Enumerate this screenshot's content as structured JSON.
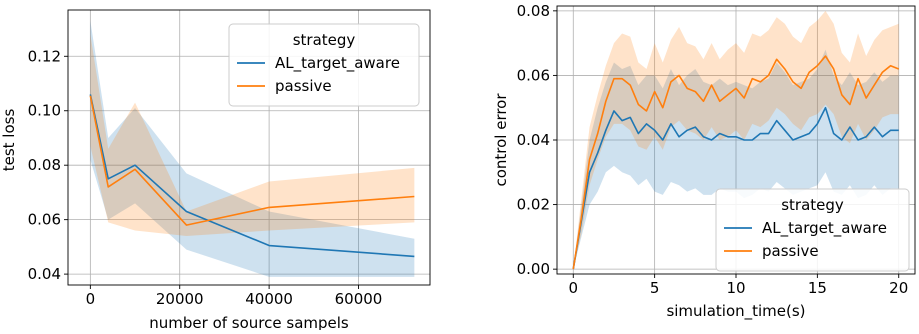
{
  "chart_data": [
    {
      "type": "line",
      "xlabel": "number of source sampels",
      "ylabel": "test loss",
      "xlim": [
        -5000,
        76000
      ],
      "ylim": [
        0.036,
        0.137
      ],
      "xticks": [
        0,
        20000,
        40000,
        60000
      ],
      "xtick_labels": [
        "0",
        "20000",
        "40000",
        "60000"
      ],
      "yticks": [
        0.04,
        0.06,
        0.08,
        0.1,
        0.12
      ],
      "ytick_labels": [
        "0.04",
        "0.06",
        "0.08",
        "0.10",
        "0.12"
      ],
      "grid": true,
      "legend": {
        "title": "strategy",
        "placement": "top-right"
      },
      "x": [
        0,
        4000,
        10000,
        21500,
        40000,
        72500
      ],
      "series": [
        {
          "name": "AL_target_aware",
          "color": "#1f77b4",
          "values": [
            0.106,
            0.075,
            0.08,
            0.063,
            0.0505,
            0.0465
          ],
          "lower": [
            0.082,
            0.06,
            0.066,
            0.049,
            0.039,
            0.039
          ],
          "upper": [
            0.133,
            0.09,
            0.101,
            0.077,
            0.063,
            0.053
          ]
        },
        {
          "name": "passive",
          "color": "#ff7f0e",
          "values": [
            0.1055,
            0.072,
            0.0785,
            0.058,
            0.0645,
            0.0685
          ],
          "lower": [
            0.087,
            0.059,
            0.056,
            0.054,
            0.056,
            0.059
          ],
          "upper": [
            0.128,
            0.086,
            0.103,
            0.063,
            0.074,
            0.079
          ]
        }
      ]
    },
    {
      "type": "line",
      "xlabel": "simulation_time(s)",
      "ylabel": "control error",
      "xlim": [
        -1.0,
        21.0
      ],
      "ylim": [
        -0.0015,
        0.0815
      ],
      "xticks": [
        0,
        5,
        10,
        15,
        20
      ],
      "xtick_labels": [
        "0",
        "5",
        "10",
        "15",
        "20"
      ],
      "yticks": [
        0.0,
        0.02,
        0.04,
        0.06,
        0.08
      ],
      "ytick_labels": [
        "0.00",
        "0.02",
        "0.04",
        "0.06",
        "0.08"
      ],
      "grid": true,
      "legend": {
        "title": "strategy",
        "placement": "lower-right"
      },
      "x": [
        0,
        0.5,
        1,
        1.5,
        2,
        2.5,
        3,
        3.5,
        4,
        4.5,
        5,
        5.5,
        6,
        6.5,
        7,
        7.5,
        8,
        8.5,
        9,
        9.5,
        10,
        10.5,
        11,
        11.5,
        12,
        12.5,
        13,
        13.5,
        14,
        14.5,
        15,
        15.5,
        16,
        16.5,
        17,
        17.5,
        18,
        18.5,
        19,
        19.5,
        20
      ],
      "series": [
        {
          "name": "AL_target_aware",
          "color": "#1f77b4",
          "values": [
            0.0,
            0.015,
            0.03,
            0.036,
            0.043,
            0.049,
            0.046,
            0.047,
            0.042,
            0.045,
            0.043,
            0.04,
            0.045,
            0.041,
            0.043,
            0.044,
            0.041,
            0.04,
            0.042,
            0.041,
            0.041,
            0.04,
            0.04,
            0.042,
            0.042,
            0.046,
            0.043,
            0.04,
            0.041,
            0.042,
            0.045,
            0.05,
            0.042,
            0.04,
            0.044,
            0.04,
            0.041,
            0.044,
            0.041,
            0.043,
            0.043
          ],
          "lower": [
            0.0,
            0.01,
            0.02,
            0.024,
            0.03,
            0.032,
            0.03,
            0.029,
            0.026,
            0.028,
            0.024,
            0.023,
            0.027,
            0.026,
            0.024,
            0.025,
            0.023,
            0.023,
            0.025,
            0.024,
            0.024,
            0.022,
            0.023,
            0.025,
            0.024,
            0.027,
            0.025,
            0.023,
            0.024,
            0.025,
            0.026,
            0.03,
            0.024,
            0.023,
            0.026,
            0.022,
            0.023,
            0.026,
            0.023,
            0.025,
            0.025
          ],
          "upper": [
            0.0,
            0.02,
            0.04,
            0.05,
            0.058,
            0.064,
            0.062,
            0.063,
            0.057,
            0.06,
            0.06,
            0.056,
            0.062,
            0.057,
            0.06,
            0.062,
            0.058,
            0.057,
            0.059,
            0.057,
            0.058,
            0.057,
            0.056,
            0.058,
            0.059,
            0.064,
            0.061,
            0.057,
            0.058,
            0.059,
            0.062,
            0.068,
            0.06,
            0.057,
            0.061,
            0.057,
            0.058,
            0.061,
            0.058,
            0.06,
            0.06
          ]
        },
        {
          "name": "passive",
          "color": "#ff7f0e",
          "values": [
            0.0,
            0.016,
            0.034,
            0.042,
            0.052,
            0.059,
            0.059,
            0.057,
            0.051,
            0.049,
            0.055,
            0.05,
            0.058,
            0.06,
            0.056,
            0.055,
            0.052,
            0.057,
            0.052,
            0.054,
            0.056,
            0.053,
            0.059,
            0.058,
            0.06,
            0.065,
            0.062,
            0.058,
            0.056,
            0.061,
            0.063,
            0.066,
            0.062,
            0.054,
            0.051,
            0.059,
            0.053,
            0.057,
            0.061,
            0.063,
            0.062
          ],
          "lower": [
            0.0,
            0.011,
            0.026,
            0.034,
            0.041,
            0.045,
            0.045,
            0.043,
            0.038,
            0.037,
            0.041,
            0.037,
            0.044,
            0.046,
            0.043,
            0.042,
            0.04,
            0.044,
            0.04,
            0.041,
            0.043,
            0.04,
            0.045,
            0.044,
            0.046,
            0.05,
            0.048,
            0.045,
            0.043,
            0.047,
            0.048,
            0.051,
            0.048,
            0.041,
            0.039,
            0.045,
            0.04,
            0.043,
            0.047,
            0.048,
            0.048
          ],
          "upper": [
            0.0,
            0.022,
            0.044,
            0.054,
            0.063,
            0.07,
            0.073,
            0.072,
            0.064,
            0.062,
            0.07,
            0.064,
            0.071,
            0.075,
            0.07,
            0.069,
            0.065,
            0.07,
            0.065,
            0.068,
            0.07,
            0.067,
            0.073,
            0.072,
            0.074,
            0.078,
            0.076,
            0.072,
            0.07,
            0.075,
            0.077,
            0.08,
            0.076,
            0.067,
            0.064,
            0.073,
            0.066,
            0.071,
            0.074,
            0.075,
            0.076
          ]
        }
      ]
    }
  ]
}
